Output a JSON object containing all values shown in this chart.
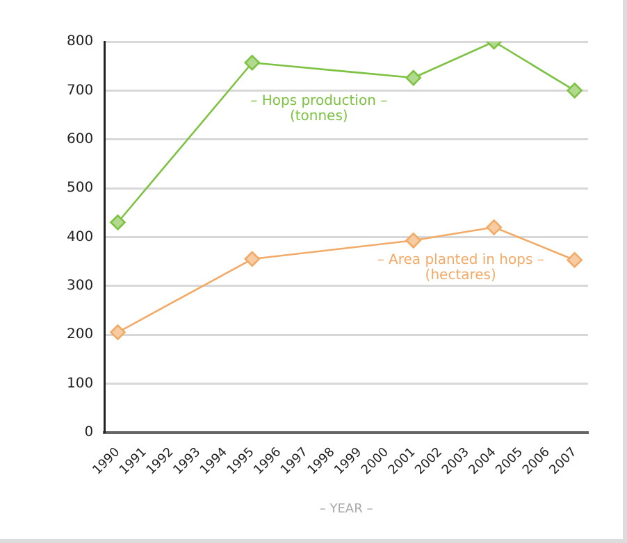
{
  "chart_data": {
    "type": "line",
    "xlabel": "– YEAR –",
    "categories": [
      "1990",
      "1991",
      "1992",
      "1993",
      "1994",
      "1995",
      "1996",
      "1997",
      "1998",
      "1999",
      "2000",
      "2001",
      "2002",
      "2003",
      "2004",
      "2005",
      "2006",
      "2007"
    ],
    "series": [
      {
        "name": "– Hops production –\n(tonnes)",
        "color": "#7dc243",
        "values": [
          430,
          null,
          null,
          null,
          null,
          757,
          null,
          null,
          null,
          null,
          null,
          726,
          null,
          null,
          800,
          null,
          null,
          700
        ]
      },
      {
        "name": "– Area planted in hops –\n(hectares)",
        "color": "#f2aa66",
        "values": [
          205,
          null,
          null,
          null,
          null,
          355,
          null,
          null,
          null,
          null,
          null,
          393,
          null,
          null,
          420,
          null,
          null,
          353
        ]
      }
    ],
    "ylim": [
      0,
      800
    ],
    "yticks": [
      0,
      100,
      200,
      300,
      400,
      500,
      600,
      700,
      800
    ],
    "grid": "y",
    "legend": false,
    "marker": "diamond",
    "line_style": "solid"
  }
}
